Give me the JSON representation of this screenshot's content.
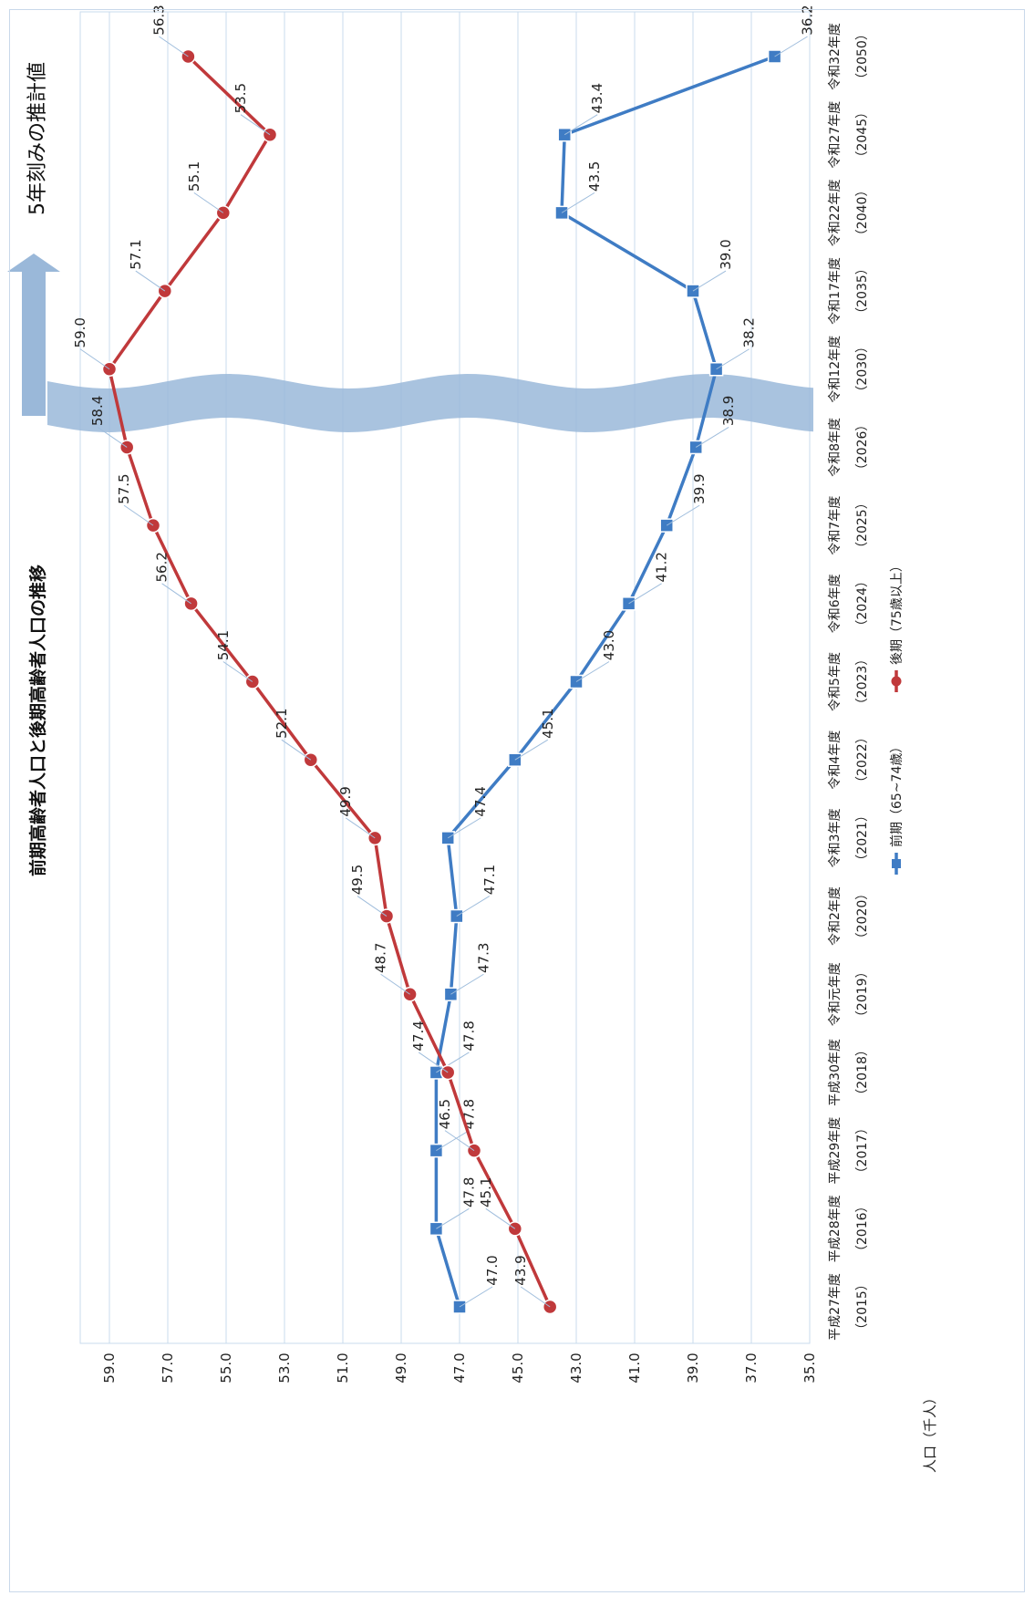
{
  "chart_data": {
    "type": "line",
    "title": "前期高齢者人口と後期高齢者人口の推移",
    "ylabel": "人口（千人）",
    "xlabel": "",
    "ylim": [
      35.0,
      60.0
    ],
    "y_ticks": [
      "35.0",
      "37.0",
      "39.0",
      "41.0",
      "43.0",
      "45.0",
      "47.0",
      "49.0",
      "51.0",
      "53.0",
      "55.0",
      "57.0",
      "59.0"
    ],
    "categories": [
      {
        "label": "平成27年度",
        "year": "（2015）"
      },
      {
        "label": "平成28年度",
        "year": "（2016）"
      },
      {
        "label": "平成29年度",
        "year": "（2017）"
      },
      {
        "label": "平成30年度",
        "year": "（2018）"
      },
      {
        "label": "令和元年度",
        "year": "（2019）"
      },
      {
        "label": "令和2年度",
        "year": "（2020）"
      },
      {
        "label": "令和3年度",
        "year": "（2021）"
      },
      {
        "label": "令和4年度",
        "year": "（2022）"
      },
      {
        "label": "令和5年度",
        "year": "（2023）"
      },
      {
        "label": "令和6年度",
        "year": "（2024）"
      },
      {
        "label": "令和7年度",
        "year": "（2025）"
      },
      {
        "label": "令和8年度",
        "year": "（2026）"
      },
      {
        "label": "令和12年度",
        "year": "（2030）"
      },
      {
        "label": "令和17年度",
        "year": "（2035）"
      },
      {
        "label": "令和22年度",
        "year": "（2040）"
      },
      {
        "label": "令和27年度",
        "year": "（2045）"
      },
      {
        "label": "令和32年度",
        "year": "（2050）"
      }
    ],
    "series": [
      {
        "name": "前期（65~74歳）",
        "color": "#3f7cc4",
        "marker": "square",
        "values": [
          47.0,
          47.8,
          47.8,
          47.8,
          47.3,
          47.1,
          47.4,
          45.1,
          43.0,
          41.2,
          39.9,
          38.9,
          38.2,
          39.0,
          43.5,
          43.4,
          36.2
        ],
        "labels": [
          "47.0",
          "47.8",
          "47.8",
          "47.8",
          "47.3",
          "47.1",
          "47.4",
          "45.1",
          "43.0",
          "41.2",
          "39.9",
          "38.9",
          "38.2",
          "39.0",
          "43.5",
          "43.4",
          "36.2"
        ]
      },
      {
        "name": "後期（75歳以上）",
        "color": "#c0393b",
        "marker": "circle",
        "values": [
          43.9,
          45.1,
          46.5,
          47.4,
          48.7,
          49.5,
          49.9,
          52.1,
          54.1,
          56.2,
          57.5,
          58.4,
          59.0,
          57.1,
          55.1,
          53.5,
          56.3
        ],
        "labels": [
          "43.9",
          "45.1",
          "46.5",
          "47.4",
          "48.7",
          "49.5",
          "49.9",
          "52.1",
          "54.1",
          "56.2",
          "57.5",
          "58.4",
          "59.0",
          "57.1",
          "55.1",
          "53.5",
          "56.3"
        ]
      }
    ],
    "annotation": "5年刻みの推計値",
    "grid": true,
    "legend": "bottom",
    "orientation": "rotated"
  },
  "colors": {
    "zone_band": "#9ab8d9",
    "grid": "#c8dbee",
    "axis_text": "#222222"
  }
}
